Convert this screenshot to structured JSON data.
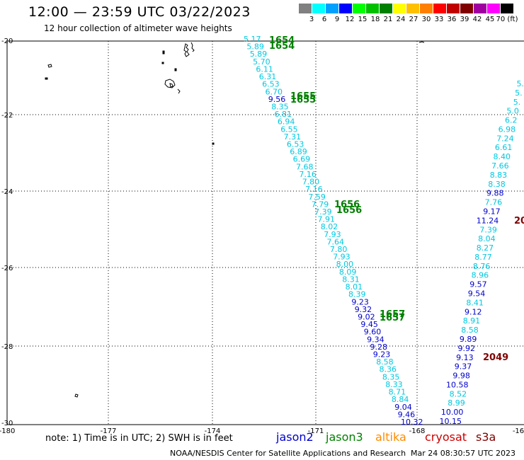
{
  "header": {
    "title": "12:00 — 23:59 UTC 03/22/2023",
    "subtitle": "12 hour collection of altimeter wave heights"
  },
  "scale": {
    "colors": [
      "#808080",
      "#00ffff",
      "#00a0ff",
      "#0000ff",
      "#00ff00",
      "#00c000",
      "#008000",
      "#ffff00",
      "#ffc000",
      "#ff8000",
      "#ff0000",
      "#c00000",
      "#800000",
      "#a000a0",
      "#ff00ff",
      "#000000"
    ],
    "labels": [
      "3",
      "6",
      "9",
      "12",
      "15",
      "18",
      "21",
      "24",
      "27",
      "30",
      "33",
      "36",
      "39",
      "42",
      "45",
      "70 (ft)"
    ]
  },
  "axes": {
    "lat_labels": [
      "-20",
      "-22",
      "-24",
      "-26",
      "-28",
      "-30"
    ],
    "lon_labels": [
      "-180",
      "-177",
      "-174",
      "-171",
      "-168",
      "-16"
    ]
  },
  "passes": [
    {
      "label": "1654",
      "color": "#008000"
    },
    {
      "label": "1655",
      "color": "#008000"
    },
    {
      "label": "1656",
      "color": "#008000"
    },
    {
      "label": "1657",
      "color": "#008000"
    },
    {
      "label": "2049",
      "color": "#800000"
    },
    {
      "label": "20",
      "color": "#800000"
    }
  ],
  "track_a": [
    {
      "v": "5.17",
      "c": "#00c8e0"
    },
    {
      "v": "5.89",
      "c": "#00c8e0"
    },
    {
      "v": "5.89",
      "c": "#00c8e0"
    },
    {
      "v": "5.70",
      "c": "#00c8e0"
    },
    {
      "v": "6.11",
      "c": "#00c8e0"
    },
    {
      "v": "6.31",
      "c": "#00c8e0"
    },
    {
      "v": "6.53",
      "c": "#00c8e0"
    },
    {
      "v": "6.70",
      "c": "#00c8e0"
    },
    {
      "v": "9.56",
      "c": "#0000cc"
    },
    {
      "v": "8.35",
      "c": "#00c8e0"
    },
    {
      "v": "6.81",
      "c": "#00c8e0"
    },
    {
      "v": "6.94",
      "c": "#00c8e0"
    },
    {
      "v": "6.55",
      "c": "#00c8e0"
    },
    {
      "v": "7.31",
      "c": "#00c8e0"
    },
    {
      "v": "6.53",
      "c": "#00c8e0"
    },
    {
      "v": "6.89",
      "c": "#00c8e0"
    },
    {
      "v": "6.69",
      "c": "#00c8e0"
    },
    {
      "v": "7.68",
      "c": "#00c8e0"
    },
    {
      "v": "7.16",
      "c": "#00c8e0"
    },
    {
      "v": "7.80",
      "c": "#00c8e0"
    },
    {
      "v": "7.16",
      "c": "#00c8e0"
    },
    {
      "v": "7.59",
      "c": "#00c8e0"
    },
    {
      "v": "7.79",
      "c": "#00c8e0"
    },
    {
      "v": "7.39",
      "c": "#00c8e0"
    },
    {
      "v": "7.91",
      "c": "#00c8e0"
    },
    {
      "v": "8.02",
      "c": "#00c8e0"
    },
    {
      "v": "7.93",
      "c": "#00c8e0"
    },
    {
      "v": "7.64",
      "c": "#00c8e0"
    },
    {
      "v": "7.80",
      "c": "#00c8e0"
    },
    {
      "v": "7.93",
      "c": "#00c8e0"
    },
    {
      "v": "8.00",
      "c": "#00c8e0"
    },
    {
      "v": "8.09",
      "c": "#00c8e0"
    },
    {
      "v": "8.31",
      "c": "#00c8e0"
    },
    {
      "v": "8.01",
      "c": "#00c8e0"
    },
    {
      "v": "8.39",
      "c": "#00c8e0"
    },
    {
      "v": "9.23",
      "c": "#0000cc"
    },
    {
      "v": "9.32",
      "c": "#0000cc"
    },
    {
      "v": "9.02",
      "c": "#0000cc"
    },
    {
      "v": "9.45",
      "c": "#0000cc"
    },
    {
      "v": "9.60",
      "c": "#0000cc"
    },
    {
      "v": "9.34",
      "c": "#0000cc"
    },
    {
      "v": "9.28",
      "c": "#0000cc"
    },
    {
      "v": "9.23",
      "c": "#0000cc"
    },
    {
      "v": "8.58",
      "c": "#00c8e0"
    },
    {
      "v": "8.36",
      "c": "#00c8e0"
    },
    {
      "v": "8.35",
      "c": "#00c8e0"
    },
    {
      "v": "8.33",
      "c": "#00c8e0"
    },
    {
      "v": "8.71",
      "c": "#00c8e0"
    },
    {
      "v": "8.84",
      "c": "#00c8e0"
    },
    {
      "v": "9.04",
      "c": "#0000cc"
    },
    {
      "v": "9.46",
      "c": "#0000cc"
    },
    {
      "v": "10.32",
      "c": "#0000cc"
    }
  ],
  "track_b": [
    {
      "v": "5.",
      "c": "#00c8e0"
    },
    {
      "v": "5.",
      "c": "#00c8e0"
    },
    {
      "v": "5.",
      "c": "#00c8e0"
    },
    {
      "v": "5.0",
      "c": "#00c8e0"
    },
    {
      "v": "6.2",
      "c": "#00c8e0"
    },
    {
      "v": "6.98",
      "c": "#00c8e0"
    },
    {
      "v": "7.24",
      "c": "#00c8e0"
    },
    {
      "v": "6.61",
      "c": "#00c8e0"
    },
    {
      "v": "8.40",
      "c": "#00c8e0"
    },
    {
      "v": "7.66",
      "c": "#00c8e0"
    },
    {
      "v": "8.83",
      "c": "#00c8e0"
    },
    {
      "v": "8.38",
      "c": "#00c8e0"
    },
    {
      "v": "9.88",
      "c": "#0000cc"
    },
    {
      "v": "7.76",
      "c": "#00c8e0"
    },
    {
      "v": "9.17",
      "c": "#0000cc"
    },
    {
      "v": "11.24",
      "c": "#0000cc"
    },
    {
      "v": "7.39",
      "c": "#00c8e0"
    },
    {
      "v": "8.04",
      "c": "#00c8e0"
    },
    {
      "v": "8.27",
      "c": "#00c8e0"
    },
    {
      "v": "8.77",
      "c": "#00c8e0"
    },
    {
      "v": "8.76",
      "c": "#00c8e0"
    },
    {
      "v": "8.96",
      "c": "#00c8e0"
    },
    {
      "v": "9.57",
      "c": "#0000cc"
    },
    {
      "v": "9.54",
      "c": "#0000cc"
    },
    {
      "v": "8.41",
      "c": "#00c8e0"
    },
    {
      "v": "9.12",
      "c": "#0000cc"
    },
    {
      "v": "8.91",
      "c": "#00c8e0"
    },
    {
      "v": "8.58",
      "c": "#00c8e0"
    },
    {
      "v": "9.89",
      "c": "#0000cc"
    },
    {
      "v": "9.92",
      "c": "#0000cc"
    },
    {
      "v": "9.13",
      "c": "#0000cc"
    },
    {
      "v": "9.37",
      "c": "#0000cc"
    },
    {
      "v": "9.98",
      "c": "#0000cc"
    },
    {
      "v": "10.58",
      "c": "#0000cc"
    },
    {
      "v": "8.52",
      "c": "#00c8e0"
    },
    {
      "v": "8.99",
      "c": "#00c8e0"
    },
    {
      "v": "10.00",
      "c": "#0000cc"
    },
    {
      "v": "10.15",
      "c": "#0000cc"
    }
  ],
  "footer": {
    "note": "note:  1) Time is in UTC;  2) SWH is in feet",
    "satellites": [
      {
        "name": "jason2",
        "color": "#0000cc"
      },
      {
        "name": "jason3",
        "color": "#008000"
      },
      {
        "name": "altika",
        "color": "#ff8c00"
      },
      {
        "name": "cryosat",
        "color": "#cc0000"
      },
      {
        "name": "s3a",
        "color": "#800000"
      }
    ],
    "credit": "NOAA/NESDIS Center for Satellite Applications and Research",
    "stamp": "Mar 24 08:30:57 UTC 2023"
  }
}
